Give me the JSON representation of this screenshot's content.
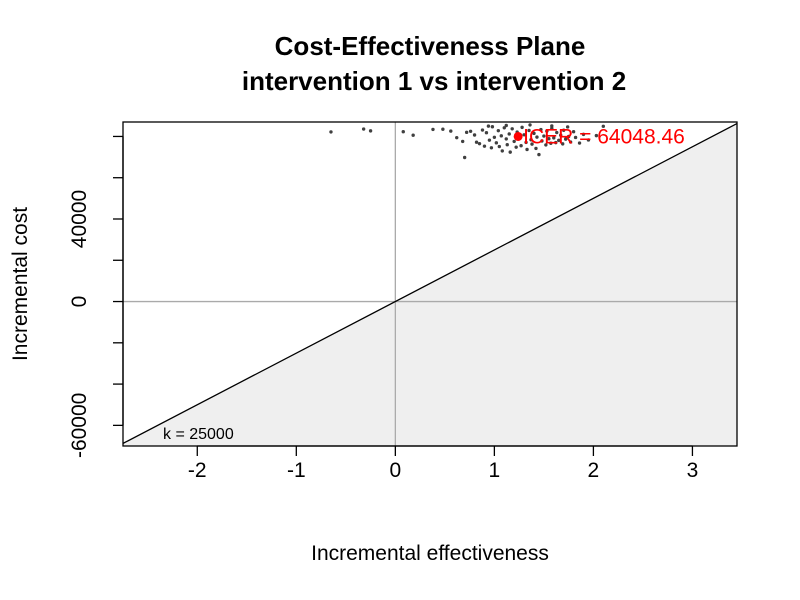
{
  "chart_data": {
    "type": "scatter",
    "title": "Cost-Effectiveness Plane",
    "subtitle": "intervention 1 vs intervention 2",
    "xlabel": "Incremental effectiveness",
    "ylabel": "Incremental cost",
    "xlim": [
      -2.75,
      3.45
    ],
    "ylim": [
      -70000,
      87000
    ],
    "x_ticks": [
      -2,
      -1,
      0,
      1,
      2,
      3
    ],
    "x_tick_labels": [
      "-2",
      "-1",
      "0",
      "1",
      "2",
      "3"
    ],
    "y_ticks": [
      -80000,
      -60000,
      -40000,
      -20000,
      0,
      20000,
      40000,
      60000,
      80000
    ],
    "y_tick_labels": [
      "-60000",
      "0",
      "40000"
    ],
    "y_labeled_ticks": [
      -60000,
      0,
      40000
    ],
    "wtp_label": "k = 25000",
    "wtp_slope": 25000,
    "icer_label": "ICER = 64048.46",
    "icer_point": {
      "x": 1.24,
      "y": 80000
    },
    "colors": {
      "points": "#404040",
      "icer": "#ff0000",
      "region": "#efefef",
      "axes": "#aaaaaa",
      "wtp_line": "#000000"
    },
    "points": [
      [
        -0.65,
        82200
      ],
      [
        -0.32,
        83600
      ],
      [
        -0.25,
        82700
      ],
      [
        0.08,
        82300
      ],
      [
        0.18,
        80600
      ],
      [
        0.38,
        83400
      ],
      [
        0.48,
        83500
      ],
      [
        0.56,
        82600
      ],
      [
        0.62,
        79400
      ],
      [
        0.68,
        77600
      ],
      [
        0.7,
        69800
      ],
      [
        0.72,
        82000
      ],
      [
        0.76,
        82500
      ],
      [
        0.8,
        80700
      ],
      [
        0.82,
        77200
      ],
      [
        0.85,
        76500
      ],
      [
        0.88,
        83100
      ],
      [
        0.9,
        75300
      ],
      [
        0.92,
        81800
      ],
      [
        0.95,
        78200
      ],
      [
        0.97,
        74500
      ],
      [
        0.98,
        84700
      ],
      [
        1.0,
        79600
      ],
      [
        1.02,
        76900
      ],
      [
        1.04,
        82800
      ],
      [
        1.05,
        75100
      ],
      [
        1.07,
        80300
      ],
      [
        1.08,
        73000
      ],
      [
        1.1,
        84200
      ],
      [
        1.12,
        78800
      ],
      [
        1.13,
        76000
      ],
      [
        1.15,
        81200
      ],
      [
        1.16,
        72400
      ],
      [
        1.18,
        83700
      ],
      [
        1.2,
        77600
      ],
      [
        1.22,
        74800
      ],
      [
        1.23,
        82100
      ],
      [
        1.25,
        79000
      ],
      [
        1.27,
        75500
      ],
      [
        1.28,
        84400
      ],
      [
        1.3,
        80800
      ],
      [
        1.32,
        77100
      ],
      [
        1.33,
        73700
      ],
      [
        1.35,
        82900
      ],
      [
        1.37,
        78400
      ],
      [
        1.38,
        76300
      ],
      [
        1.4,
        81500
      ],
      [
        1.42,
        74200
      ],
      [
        1.43,
        79700
      ],
      [
        1.45,
        71200
      ],
      [
        1.47,
        83300
      ],
      [
        1.48,
        77800
      ],
      [
        1.5,
        80200
      ],
      [
        1.52,
        75900
      ],
      [
        1.53,
        82600
      ],
      [
        1.55,
        78900
      ],
      [
        1.57,
        76700
      ],
      [
        1.58,
        84000
      ],
      [
        1.6,
        79300
      ],
      [
        1.62,
        77000
      ],
      [
        1.63,
        81900
      ],
      [
        1.65,
        78100
      ],
      [
        1.67,
        80600
      ],
      [
        1.69,
        76400
      ],
      [
        1.7,
        83000
      ],
      [
        1.72,
        78700
      ],
      [
        1.75,
        80000
      ],
      [
        1.77,
        77300
      ],
      [
        1.8,
        82300
      ],
      [
        1.82,
        79500
      ],
      [
        1.86,
        76800
      ],
      [
        1.9,
        81000
      ],
      [
        1.95,
        78300
      ],
      [
        2.03,
        80400
      ],
      [
        2.1,
        84900
      ],
      [
        1.12,
        85300
      ],
      [
        1.36,
        85600
      ],
      [
        1.58,
        85100
      ],
      [
        0.94,
        85000
      ],
      [
        1.74,
        84600
      ]
    ]
  }
}
